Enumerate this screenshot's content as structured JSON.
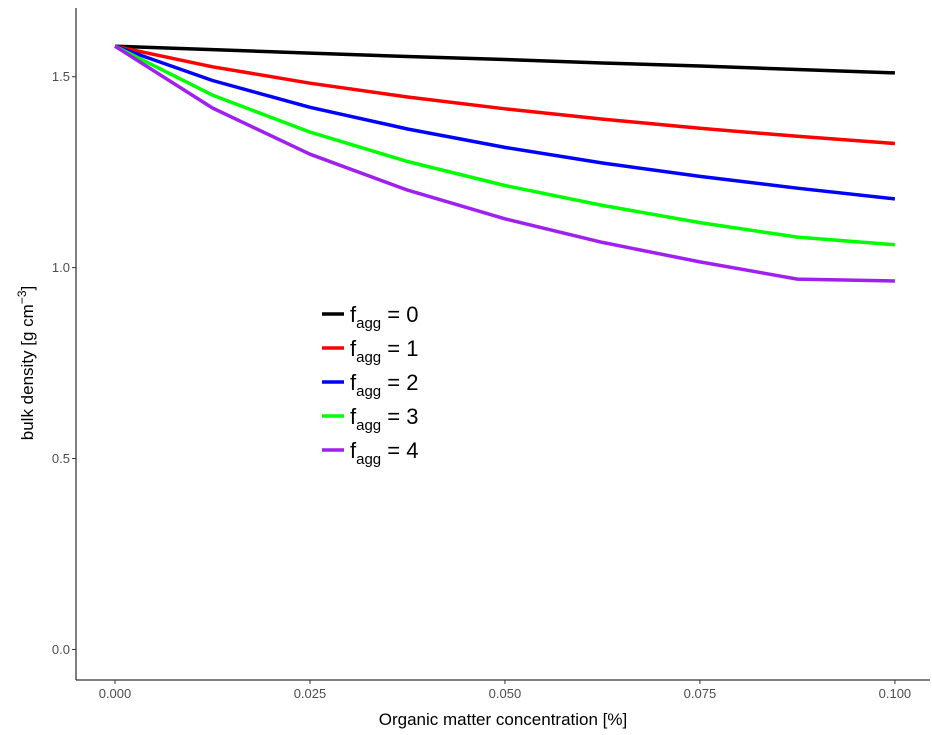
{
  "chart_data": {
    "type": "line",
    "xlabel": "Organic matter concentration [%]",
    "ylabel": {
      "main": "bulk density [g cm",
      "superscript": "−3",
      "close": "]"
    },
    "xlim": [
      -0.005,
      0.1045
    ],
    "ylim": [
      -0.08,
      1.68
    ],
    "x_ticks": [
      0.0,
      0.025,
      0.05,
      0.075,
      0.1
    ],
    "x_tick_labels": [
      "0.000",
      "0.025",
      "0.050",
      "0.075",
      "0.100"
    ],
    "y_ticks": [
      0.0,
      0.5,
      1.0,
      1.5
    ],
    "y_tick_labels": [
      "0.0",
      "0.5",
      "1.0",
      "1.5"
    ],
    "grid": false,
    "legend_placement": "left-center",
    "x": [
      0.0,
      0.0125,
      0.025,
      0.0375,
      0.05,
      0.0625,
      0.075,
      0.0875,
      0.1
    ],
    "series": [
      {
        "legend_label": {
          "base": "f",
          "sub": "agg",
          "rest": " = 0"
        },
        "color": "#000000",
        "values": [
          1.58,
          1.571,
          1.562,
          1.553,
          1.545,
          1.536,
          1.528,
          1.519,
          1.51
        ]
      },
      {
        "legend_label": {
          "base": "f",
          "sub": "agg",
          "rest": " = 1"
        },
        "color": "#ff0000",
        "values": [
          1.58,
          1.526,
          1.483,
          1.447,
          1.416,
          1.389,
          1.365,
          1.344,
          1.325
        ]
      },
      {
        "legend_label": {
          "base": "f",
          "sub": "agg",
          "rest": " = 2"
        },
        "color": "#0000ff",
        "values": [
          1.58,
          1.49,
          1.42,
          1.363,
          1.315,
          1.274,
          1.239,
          1.208,
          1.18
        ]
      },
      {
        "legend_label": {
          "base": "f",
          "sub": "agg",
          "rest": " = 3"
        },
        "color": "#00ff00",
        "values": [
          1.58,
          1.452,
          1.355,
          1.278,
          1.215,
          1.163,
          1.118,
          1.08,
          1.06
        ]
      },
      {
        "legend_label": {
          "base": "f",
          "sub": "agg",
          "rest": " = 4"
        },
        "color": "#a020f0",
        "values": [
          1.58,
          1.418,
          1.297,
          1.203,
          1.128,
          1.066,
          1.015,
          0.97,
          0.965
        ]
      }
    ]
  }
}
